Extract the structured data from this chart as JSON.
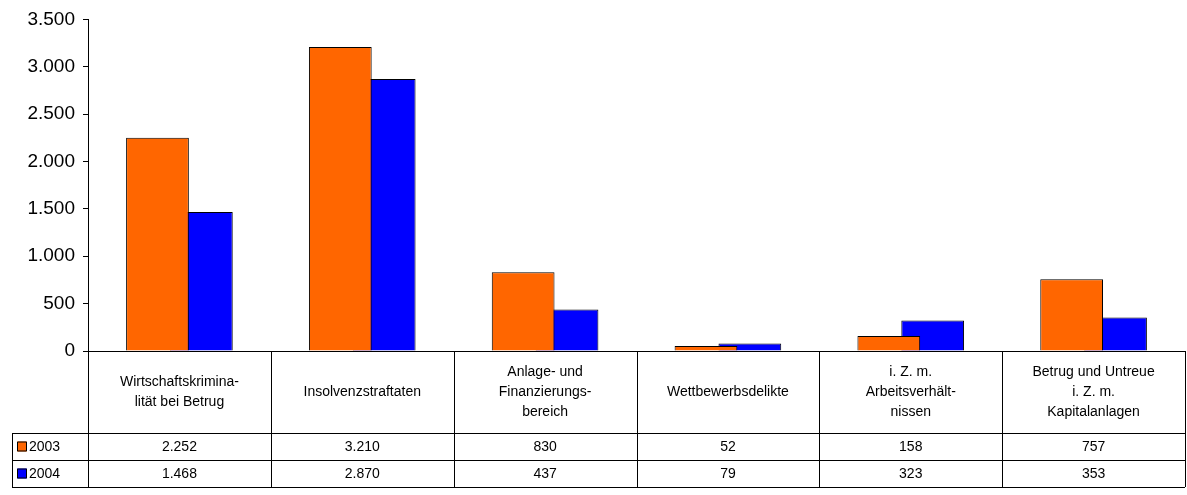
{
  "chart_data": {
    "type": "bar",
    "categories": [
      "Wirtschaftskrimina-lität bei Betrug",
      "Insolvenzstraftaten",
      "Anlage- und Finanzierungs-bereich",
      "Wettbewerbsdelikte",
      "i. Z. m. Arbeitsverhält-nissen",
      "Betrug und Untreue i. Z. m. Kapitalanlagen"
    ],
    "series": [
      {
        "name": "2003",
        "color": "#ff6600",
        "values": [
          2252,
          3210,
          830,
          52,
          158,
          757
        ],
        "value_labels": [
          "2.252",
          "3.210",
          "830",
          "52",
          "158",
          "757"
        ]
      },
      {
        "name": "2004",
        "color": "#0000ff",
        "values": [
          1468,
          2870,
          437,
          79,
          323,
          353
        ],
        "value_labels": [
          "1.468",
          "2.870",
          "437",
          "79",
          "323",
          "353"
        ]
      }
    ],
    "ylim": [
      0,
      3500
    ],
    "yticks": [
      {
        "value": 0,
        "label": "0"
      },
      {
        "value": 500,
        "label": "500"
      },
      {
        "value": 1000,
        "label": "1.000"
      },
      {
        "value": 1500,
        "label": "1.500"
      },
      {
        "value": 2000,
        "label": "2.000"
      },
      {
        "value": 2500,
        "label": "2.500"
      },
      {
        "value": 3000,
        "label": "3.000"
      },
      {
        "value": 3500,
        "label": "3.500"
      }
    ],
    "grid": false,
    "legend": "bottom"
  }
}
